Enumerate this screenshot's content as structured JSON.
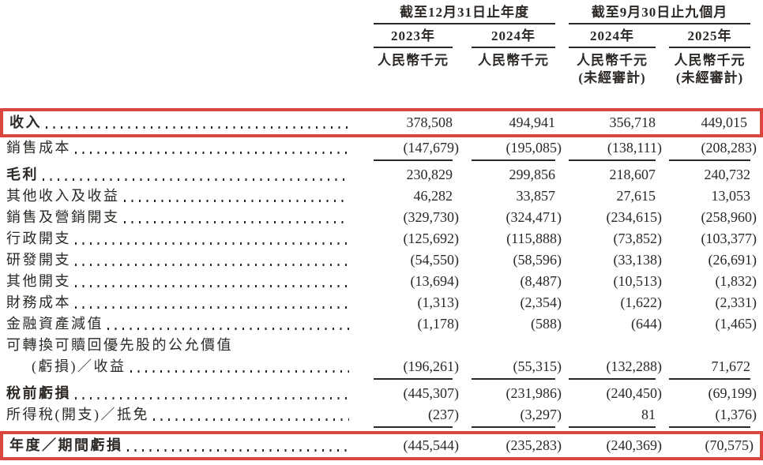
{
  "page": {
    "language": "zh-Hant",
    "colors": {
      "text": "#2b2825",
      "highlight_box": "#d9473f",
      "background": "#ffffff"
    }
  },
  "header": {
    "groups": [
      {
        "title": "截至12月31日止年度"
      },
      {
        "title": "截至9月30日止九個月"
      }
    ],
    "columns": [
      {
        "year": "2023年",
        "unit": "人民幣千元",
        "note": ""
      },
      {
        "year": "2024年",
        "unit": "人民幣千元",
        "note": ""
      },
      {
        "year": "2024年",
        "unit": "人民幣千元",
        "note": "(未經審計)"
      },
      {
        "year": "2025年",
        "unit": "人民幣千元",
        "note": "(未經審計)"
      }
    ]
  },
  "table": {
    "rows": [
      {
        "label": "收入",
        "bold": true,
        "highlight": true,
        "dots": true,
        "values": [
          "378,508",
          "494,941",
          "356,718",
          "449,015"
        ]
      },
      {
        "label": "銷售成本",
        "dots": true,
        "underline": true,
        "values": [
          "(147,679)",
          "(195,085)",
          "(138,111)",
          "(208,283)"
        ]
      },
      {
        "label": "毛利",
        "bold": true,
        "dots": true,
        "values": [
          "230,829",
          "299,856",
          "218,607",
          "240,732"
        ]
      },
      {
        "label": "其他收入及收益",
        "dots": true,
        "values": [
          "46,282",
          "33,857",
          "27,615",
          "13,053"
        ]
      },
      {
        "label": "銷售及營銷開支",
        "dots": true,
        "values": [
          "(329,730)",
          "(324,471)",
          "(234,615)",
          "(258,960)"
        ]
      },
      {
        "label": "行政開支",
        "dots": true,
        "values": [
          "(125,692)",
          "(115,888)",
          "(73,852)",
          "(103,377)"
        ]
      },
      {
        "label": "研發開支",
        "dots": true,
        "values": [
          "(54,550)",
          "(58,596)",
          "(33,138)",
          "(26,691)"
        ]
      },
      {
        "label": "其他開支",
        "dots": true,
        "values": [
          "(13,694)",
          "(8,487)",
          "(10,513)",
          "(1,832)"
        ]
      },
      {
        "label": "財務成本",
        "dots": true,
        "values": [
          "(1,313)",
          "(2,354)",
          "(1,622)",
          "(2,331)"
        ]
      },
      {
        "label": "金融資產減值",
        "dots": true,
        "values": [
          "(1,178)",
          "(588)",
          "(644)",
          "(1,465)"
        ]
      },
      {
        "label": "可轉換可贖回優先股的公允價值",
        "dots": false,
        "values": null
      },
      {
        "label": "(虧損)／收益",
        "indent": true,
        "dots": true,
        "underline": true,
        "values": [
          "(196,261)",
          "(55,315)",
          "(132,288)",
          "71,672"
        ]
      },
      {
        "label": "稅前虧損",
        "bold": true,
        "dots": true,
        "values": [
          "(445,307)",
          "(231,986)",
          "(240,450)",
          "(69,199)"
        ]
      },
      {
        "label": "所得稅(開支)／抵免",
        "dots": true,
        "underline": true,
        "values": [
          "(237)",
          "(3,297)",
          "81",
          "(1,376)"
        ]
      },
      {
        "label": "年度／期間虧損",
        "bold": true,
        "highlight": true,
        "dots": true,
        "values": [
          "(445,544)",
          "(235,283)",
          "(240,369)",
          "(70,575)"
        ]
      }
    ]
  }
}
